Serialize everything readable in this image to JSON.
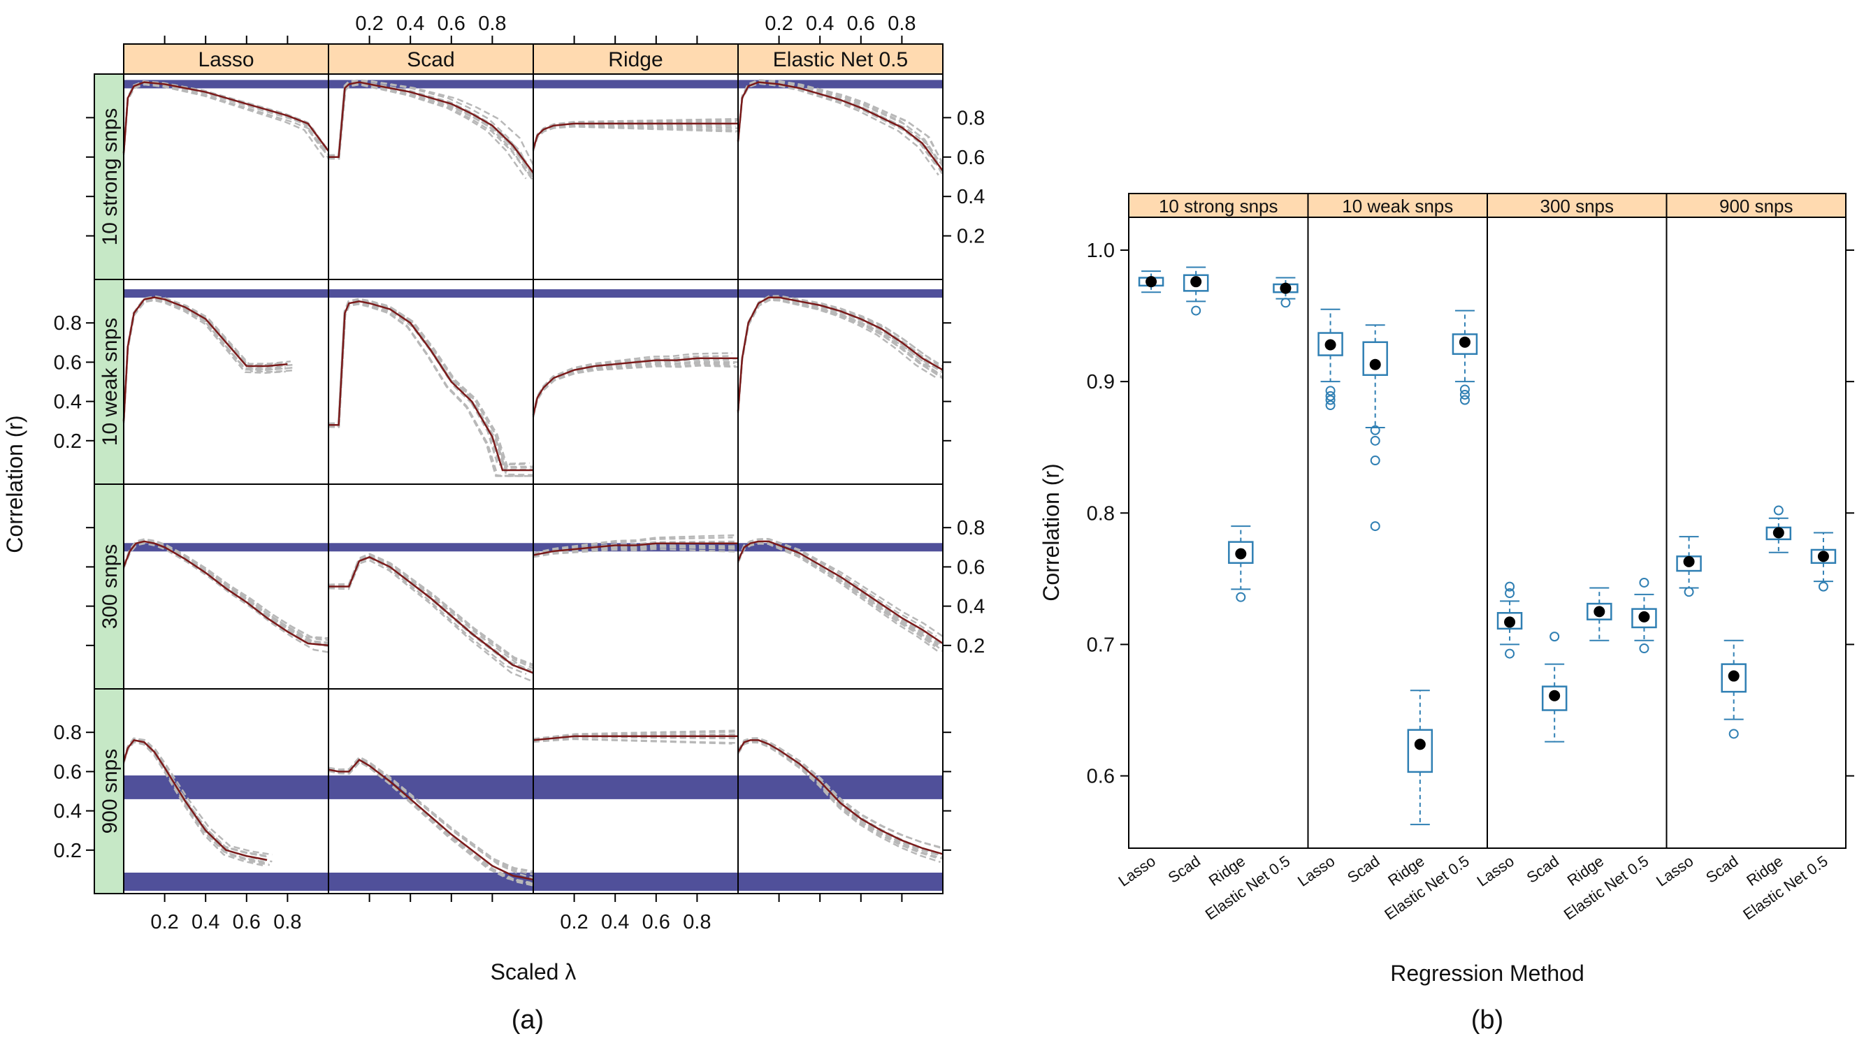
{
  "colors": {
    "strip": "#ffdab0",
    "strip_row": "#c6e8c6",
    "curve": "#7a1a1a",
    "sim": "#b8b8b8",
    "band": "#3d3d8f",
    "box": "#2f7fb3",
    "median": "#000000"
  },
  "chart_data": [
    {
      "type": "line",
      "panel_caption": "(a)",
      "xlabel": "Scaled λ",
      "ylabel": "Correlation (r)",
      "columns": [
        "Lasso",
        "Scad",
        "Ridge",
        "Elastic Net 0.5"
      ],
      "rows": [
        "10 strong snps",
        "10 weak snps",
        "300 snps",
        "900 snps"
      ],
      "xticks": [
        "0.2",
        "0.4",
        "0.6",
        "0.8"
      ],
      "yticks": [
        "0.2",
        "0.4",
        "0.6",
        "0.8"
      ],
      "xlim": [
        0,
        1
      ],
      "ylim": [
        0,
        1
      ],
      "grid": false,
      "panels": {
        "10 strong snps": {
          "Lasso": {
            "x": [
              0,
              0.02,
              0.05,
              0.1,
              0.2,
              0.3,
              0.4,
              0.5,
              0.6,
              0.7,
              0.8,
              0.9,
              1.0
            ],
            "y": [
              0.62,
              0.9,
              0.96,
              0.98,
              0.97,
              0.95,
              0.93,
              0.9,
              0.87,
              0.84,
              0.81,
              0.77,
              0.63
            ],
            "band": 0.97
          },
          "Scad": {
            "x": [
              0,
              0.05,
              0.08,
              0.1,
              0.15,
              0.2,
              0.3,
              0.4,
              0.5,
              0.6,
              0.7,
              0.8,
              0.9,
              1.0
            ],
            "y": [
              0.6,
              0.6,
              0.95,
              0.97,
              0.98,
              0.97,
              0.95,
              0.93,
              0.9,
              0.87,
              0.82,
              0.76,
              0.66,
              0.52
            ],
            "band": 0.97
          },
          "Ridge": {
            "x": [
              0,
              0.02,
              0.05,
              0.1,
              0.2,
              0.3,
              0.4,
              0.5,
              0.6,
              0.7,
              0.8,
              0.9,
              1.0
            ],
            "y": [
              0.64,
              0.71,
              0.74,
              0.76,
              0.77,
              0.77,
              0.77,
              0.77,
              0.77,
              0.77,
              0.77,
              0.77,
              0.77
            ],
            "band": 0.97
          },
          "Elastic Net 0.5": {
            "x": [
              0,
              0.02,
              0.05,
              0.1,
              0.2,
              0.3,
              0.4,
              0.5,
              0.6,
              0.7,
              0.8,
              0.9,
              1.0
            ],
            "y": [
              0.68,
              0.9,
              0.96,
              0.98,
              0.97,
              0.95,
              0.92,
              0.89,
              0.85,
              0.8,
              0.75,
              0.67,
              0.53
            ],
            "band": 0.97
          }
        },
        "10 weak snps": {
          "Lasso": {
            "x": [
              0,
              0.02,
              0.05,
              0.1,
              0.15,
              0.2,
              0.3,
              0.4,
              0.5,
              0.6,
              0.65,
              0.7,
              0.8
            ],
            "y": [
              0.3,
              0.68,
              0.85,
              0.92,
              0.93,
              0.92,
              0.88,
              0.82,
              0.7,
              0.58,
              0.58,
              0.58,
              0.59
            ],
            "band": 0.95
          },
          "Scad": {
            "x": [
              0,
              0.05,
              0.08,
              0.1,
              0.15,
              0.2,
              0.3,
              0.4,
              0.5,
              0.6,
              0.7,
              0.8,
              0.85,
              0.9,
              1.0
            ],
            "y": [
              0.28,
              0.28,
              0.85,
              0.9,
              0.91,
              0.9,
              0.87,
              0.8,
              0.66,
              0.5,
              0.4,
              0.22,
              0.05,
              0.05,
              0.05
            ],
            "band": 0.95
          },
          "Ridge": {
            "x": [
              0,
              0.02,
              0.05,
              0.1,
              0.2,
              0.3,
              0.4,
              0.5,
              0.6,
              0.7,
              0.8,
              0.9,
              1.0
            ],
            "y": [
              0.33,
              0.42,
              0.47,
              0.52,
              0.56,
              0.58,
              0.59,
              0.6,
              0.61,
              0.61,
              0.62,
              0.62,
              0.62
            ],
            "band": 0.95
          },
          "Elastic Net 0.5": {
            "x": [
              0,
              0.02,
              0.05,
              0.1,
              0.15,
              0.2,
              0.3,
              0.4,
              0.5,
              0.6,
              0.7,
              0.8,
              0.9,
              1.0
            ],
            "y": [
              0.35,
              0.62,
              0.8,
              0.9,
              0.93,
              0.93,
              0.91,
              0.89,
              0.86,
              0.82,
              0.77,
              0.7,
              0.62,
              0.56
            ],
            "band": 0.95
          }
        },
        "300 snps": {
          "Lasso": {
            "x": [
              0,
              0.03,
              0.06,
              0.1,
              0.15,
              0.2,
              0.3,
              0.4,
              0.5,
              0.6,
              0.7,
              0.8,
              0.9,
              1.0
            ],
            "y": [
              0.6,
              0.68,
              0.72,
              0.73,
              0.72,
              0.7,
              0.64,
              0.57,
              0.49,
              0.42,
              0.34,
              0.27,
              0.21,
              0.2
            ],
            "band": 0.7
          },
          "Scad": {
            "x": [
              0,
              0.05,
              0.1,
              0.15,
              0.2,
              0.3,
              0.4,
              0.5,
              0.6,
              0.7,
              0.8,
              0.9,
              1.0
            ],
            "y": [
              0.5,
              0.5,
              0.5,
              0.63,
              0.65,
              0.6,
              0.52,
              0.44,
              0.35,
              0.26,
              0.18,
              0.1,
              0.06
            ],
            "band": 0.7
          },
          "Ridge": {
            "x": [
              0,
              0.1,
              0.2,
              0.3,
              0.4,
              0.5,
              0.6,
              0.7,
              0.8,
              0.9,
              1.0
            ],
            "y": [
              0.66,
              0.68,
              0.69,
              0.7,
              0.71,
              0.71,
              0.72,
              0.72,
              0.72,
              0.72,
              0.72
            ],
            "band": 0.7
          },
          "Elastic Net 0.5": {
            "x": [
              0,
              0.03,
              0.06,
              0.1,
              0.15,
              0.2,
              0.3,
              0.4,
              0.5,
              0.6,
              0.7,
              0.8,
              0.9,
              1.0
            ],
            "y": [
              0.63,
              0.7,
              0.72,
              0.73,
              0.73,
              0.71,
              0.67,
              0.61,
              0.55,
              0.48,
              0.41,
              0.34,
              0.28,
              0.21
            ],
            "band": 0.7
          }
        },
        "900 snps": {
          "Lasso": {
            "x": [
              0,
              0.02,
              0.05,
              0.1,
              0.15,
              0.2,
              0.3,
              0.4,
              0.5,
              0.6,
              0.65,
              0.7
            ],
            "y": [
              0.65,
              0.72,
              0.76,
              0.75,
              0.7,
              0.62,
              0.45,
              0.3,
              0.2,
              0.17,
              0.16,
              0.15
            ],
            "band": 0.52
          },
          "Scad": {
            "x": [
              0,
              0.05,
              0.1,
              0.15,
              0.2,
              0.3,
              0.4,
              0.5,
              0.6,
              0.7,
              0.8,
              0.9,
              1.0
            ],
            "y": [
              0.61,
              0.6,
              0.6,
              0.66,
              0.63,
              0.55,
              0.46,
              0.37,
              0.28,
              0.2,
              0.12,
              0.07,
              0.05
            ],
            "band": 0.52
          },
          "Ridge": {
            "x": [
              0,
              0.1,
              0.2,
              0.3,
              0.4,
              0.5,
              0.6,
              0.7,
              0.8,
              0.9,
              1.0
            ],
            "y": [
              0.76,
              0.77,
              0.78,
              0.78,
              0.78,
              0.78,
              0.78,
              0.78,
              0.78,
              0.78,
              0.78
            ],
            "band": 0.52
          },
          "Elastic Net 0.5": {
            "x": [
              0,
              0.03,
              0.06,
              0.1,
              0.15,
              0.2,
              0.3,
              0.4,
              0.5,
              0.6,
              0.7,
              0.8,
              0.9,
              1.0
            ],
            "y": [
              0.7,
              0.75,
              0.76,
              0.76,
              0.74,
              0.71,
              0.64,
              0.55,
              0.44,
              0.36,
              0.3,
              0.25,
              0.21,
              0.18
            ],
            "band": 0.52
          }
        }
      }
    },
    {
      "type": "box",
      "panel_caption": "(b)",
      "xlabel": "Regression Method",
      "ylabel": "Correlation (r)",
      "categories": [
        "Lasso",
        "Scad",
        "Ridge",
        "Elastic Net 0.5"
      ],
      "yticks": [
        "0.6",
        "0.7",
        "0.8",
        "0.9",
        "1.0"
      ],
      "ylim": [
        0.545,
        1.025
      ],
      "grid": false,
      "groups": [
        {
          "name": "10 strong snps",
          "boxes": [
            {
              "median": 0.976,
              "q1": 0.973,
              "q3": 0.979,
              "wlo": 0.968,
              "whi": 0.984,
              "outliers": []
            },
            {
              "median": 0.976,
              "q1": 0.969,
              "q3": 0.981,
              "wlo": 0.961,
              "whi": 0.987,
              "outliers": [
                0.954
              ]
            },
            {
              "median": 0.769,
              "q1": 0.762,
              "q3": 0.778,
              "wlo": 0.742,
              "whi": 0.79,
              "outliers": [
                0.736
              ]
            },
            {
              "median": 0.971,
              "q1": 0.968,
              "q3": 0.974,
              "wlo": 0.963,
              "whi": 0.979,
              "outliers": [
                0.96
              ]
            }
          ]
        },
        {
          "name": "10 weak snps",
          "boxes": [
            {
              "median": 0.928,
              "q1": 0.92,
              "q3": 0.937,
              "wlo": 0.9,
              "whi": 0.955,
              "outliers": [
                0.893,
                0.889,
                0.886,
                0.882
              ]
            },
            {
              "median": 0.913,
              "q1": 0.905,
              "q3": 0.93,
              "wlo": 0.865,
              "whi": 0.943,
              "outliers": [
                0.863,
                0.855,
                0.84,
                0.79
              ]
            },
            {
              "median": 0.624,
              "q1": 0.603,
              "q3": 0.635,
              "wlo": 0.563,
              "whi": 0.665,
              "outliers": []
            },
            {
              "median": 0.93,
              "q1": 0.921,
              "q3": 0.936,
              "wlo": 0.9,
              "whi": 0.954,
              "outliers": [
                0.894,
                0.89,
                0.886
              ]
            }
          ]
        },
        {
          "name": "300 snps",
          "boxes": [
            {
              "median": 0.717,
              "q1": 0.712,
              "q3": 0.724,
              "wlo": 0.7,
              "whi": 0.733,
              "outliers": [
                0.744,
                0.739,
                0.693
              ]
            },
            {
              "median": 0.661,
              "q1": 0.65,
              "q3": 0.668,
              "wlo": 0.626,
              "whi": 0.685,
              "outliers": [
                0.706
              ]
            },
            {
              "median": 0.725,
              "q1": 0.719,
              "q3": 0.731,
              "wlo": 0.703,
              "whi": 0.743,
              "outliers": []
            },
            {
              "median": 0.721,
              "q1": 0.713,
              "q3": 0.727,
              "wlo": 0.703,
              "whi": 0.738,
              "outliers": [
                0.747,
                0.697
              ]
            }
          ]
        },
        {
          "name": "900 snps",
          "boxes": [
            {
              "median": 0.763,
              "q1": 0.756,
              "q3": 0.767,
              "wlo": 0.743,
              "whi": 0.782,
              "outliers": [
                0.74
              ]
            },
            {
              "median": 0.676,
              "q1": 0.664,
              "q3": 0.685,
              "wlo": 0.643,
              "whi": 0.703,
              "outliers": [
                0.632
              ]
            },
            {
              "median": 0.785,
              "q1": 0.78,
              "q3": 0.789,
              "wlo": 0.77,
              "whi": 0.796,
              "outliers": [
                0.802
              ]
            },
            {
              "median": 0.767,
              "q1": 0.762,
              "q3": 0.772,
              "wlo": 0.748,
              "whi": 0.785,
              "outliers": [
                0.744
              ]
            }
          ]
        }
      ]
    }
  ]
}
